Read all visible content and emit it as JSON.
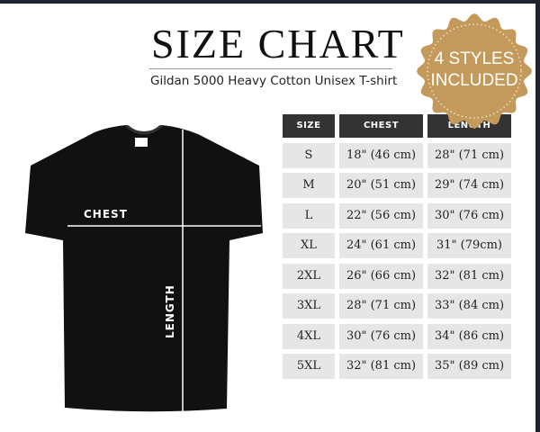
{
  "header": {
    "title": "SIZE CHART",
    "subtitle": "Gildan 5000 Heavy Cotton Unisex T-shirt"
  },
  "badge": {
    "line1": "4 STYLES",
    "line2": "INCLUDED",
    "color": "#c39a5c"
  },
  "shirt": {
    "chest_label": "CHEST",
    "length_label": "LENGTH",
    "color": "#111111"
  },
  "table": {
    "headers": [
      "SIZE",
      "CHEST",
      "LENGTH"
    ],
    "rows": [
      [
        "S",
        "18\" (46 cm)",
        "28\" (71 cm)"
      ],
      [
        "M",
        "20\" (51 cm)",
        "29\" (74 cm)"
      ],
      [
        "L",
        "22\" (56 cm)",
        "30\" (76 cm)"
      ],
      [
        "XL",
        "24\" (61 cm)",
        "31\" (79cm)"
      ],
      [
        "2XL",
        "26\" (66 cm)",
        "32\" (81 cm)"
      ],
      [
        "3XL",
        "28\" (71 cm)",
        "33\" (84 cm)"
      ],
      [
        "4XL",
        "30\" (76 cm)",
        "34\" (86 cm)"
      ],
      [
        "5XL",
        "32\" (81 cm)",
        "35\" (89 cm)"
      ]
    ]
  }
}
